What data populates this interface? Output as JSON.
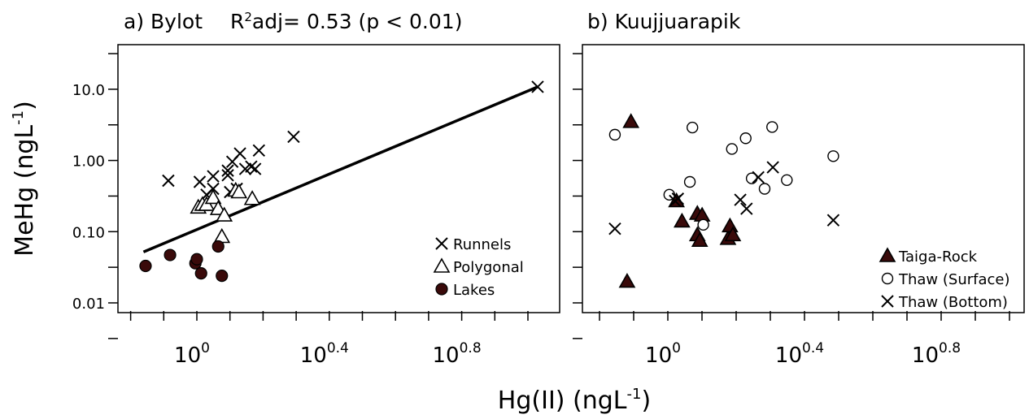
{
  "figure": {
    "xlabel_text": "Hg(II) (ngL",
    "xlabel_sup": "-1",
    "xlabel_close": ")",
    "ylabel_text": "MeHg (ngL",
    "ylabel_sup": "-1",
    "ylabel_close": ")"
  },
  "chart_data": [
    {
      "type": "scatter",
      "panel_title": "a) Bylot",
      "annotation": {
        "r": "R",
        "sup": "2",
        "rest": "adj= 0.53 (p < 0.01)"
      },
      "x_scale": "log10",
      "y_scale": "log10",
      "xlim_log10": [
        -0.2,
        1.1
      ],
      "ylim_log10": [
        -2.3,
        1.6
      ],
      "x_ticks": [
        {
          "log10": 0.0,
          "base": "10",
          "exp": "0"
        },
        {
          "log10": 0.4,
          "base": "10",
          "exp": "0.4"
        },
        {
          "log10": 0.8,
          "base": "10",
          "exp": "0.8"
        }
      ],
      "y_ticks": [
        {
          "value": 0.01,
          "label": "0.01"
        },
        {
          "value": 0.1,
          "label": "0.10"
        },
        {
          "value": 1,
          "label": "1.00"
        },
        {
          "value": 10,
          "label": "10.0"
        }
      ],
      "fit_line": {
        "from": [
          0.69,
          0.052
        ],
        "to": [
          10.7,
          10.8
        ]
      },
      "series": [
        {
          "name": "Runnels",
          "marker": "x",
          "color": "#000000",
          "points": [
            [
              0.82,
              0.52
            ],
            [
              1.02,
              0.5
            ],
            [
              1.12,
              0.6
            ],
            [
              1.12,
              0.4
            ],
            [
              1.07,
              0.33
            ],
            [
              1.24,
              0.72
            ],
            [
              1.24,
              0.62
            ],
            [
              1.28,
              0.96
            ],
            [
              1.26,
              0.36
            ],
            [
              1.32,
              0.4
            ],
            [
              1.35,
              1.25
            ],
            [
              1.4,
              0.76
            ],
            [
              1.46,
              0.82
            ],
            [
              1.5,
              0.76
            ],
            [
              1.54,
              1.38
            ],
            [
              1.96,
              2.15
            ],
            [
              10.7,
              10.8
            ]
          ]
        },
        {
          "name": "Polygonal",
          "marker": "triangle-open",
          "color": "#000000",
          "points": [
            [
              1.01,
              0.22
            ],
            [
              1.04,
              0.24
            ],
            [
              1.07,
              0.24
            ],
            [
              1.12,
              0.3
            ],
            [
              1.16,
              0.21
            ],
            [
              1.19,
              0.085
            ],
            [
              1.21,
              0.17
            ],
            [
              1.31,
              0.38
            ],
            [
              1.34,
              0.36
            ],
            [
              1.47,
              0.29
            ]
          ]
        },
        {
          "name": "Lakes",
          "marker": "circle-filled",
          "color": "#3a0a0a",
          "points": [
            [
              0.7,
              0.033
            ],
            [
              0.83,
              0.047
            ],
            [
              0.99,
              0.036
            ],
            [
              1.0,
              0.041
            ],
            [
              1.03,
              0.026
            ],
            [
              1.16,
              0.062
            ],
            [
              1.19,
              0.024
            ]
          ]
        }
      ],
      "legend_position": "bottom-right"
    },
    {
      "type": "scatter",
      "panel_title": "b) Kuujjuarapik",
      "x_scale": "log10",
      "y_scale": "log10",
      "xlim_log10": [
        -0.2,
        1.1
      ],
      "ylim_log10": [
        -2.3,
        1.6
      ],
      "x_ticks": [
        {
          "log10": 0.0,
          "base": "10",
          "exp": "0"
        },
        {
          "log10": 0.4,
          "base": "10",
          "exp": "0.4"
        },
        {
          "log10": 0.8,
          "base": "10",
          "exp": "0.8"
        }
      ],
      "series": [
        {
          "name": "Taiga-Rock",
          "marker": "triangle-filled",
          "color": "#3a0a0a",
          "points": [
            [
              0.76,
              0.02
            ],
            [
              0.78,
              3.5
            ],
            [
              1.06,
              0.27
            ],
            [
              1.1,
              0.14
            ],
            [
              1.22,
              0.18
            ],
            [
              1.22,
              0.09
            ],
            [
              1.24,
              0.075
            ],
            [
              1.26,
              0.17
            ],
            [
              1.5,
              0.08
            ],
            [
              1.52,
              0.12
            ],
            [
              1.55,
              0.09
            ]
          ]
        },
        {
          "name": "Thaw (Surface)",
          "marker": "circle-open",
          "color": "#000000",
          "points": [
            [
              0.7,
              2.3
            ],
            [
              1.01,
              0.33
            ],
            [
              1.16,
              0.5
            ],
            [
              1.18,
              2.9
            ],
            [
              1.27,
              0.125
            ],
            [
              1.54,
              1.45
            ],
            [
              1.69,
              2.05
            ],
            [
              1.76,
              0.56
            ],
            [
              1.92,
              0.4
            ],
            [
              2.02,
              2.95
            ],
            [
              2.23,
              0.53
            ],
            [
              3.05,
              1.15
            ]
          ]
        },
        {
          "name": "Thaw (Bottom)",
          "marker": "x",
          "color": "#000000",
          "points": [
            [
              0.7,
              0.11
            ],
            [
              1.05,
              0.27
            ],
            [
              1.07,
              0.29
            ],
            [
              1.63,
              0.28
            ],
            [
              1.7,
              0.21
            ],
            [
              1.84,
              0.58
            ],
            [
              2.03,
              0.8
            ],
            [
              3.05,
              0.145
            ]
          ]
        }
      ],
      "legend_position": "bottom-right"
    }
  ]
}
